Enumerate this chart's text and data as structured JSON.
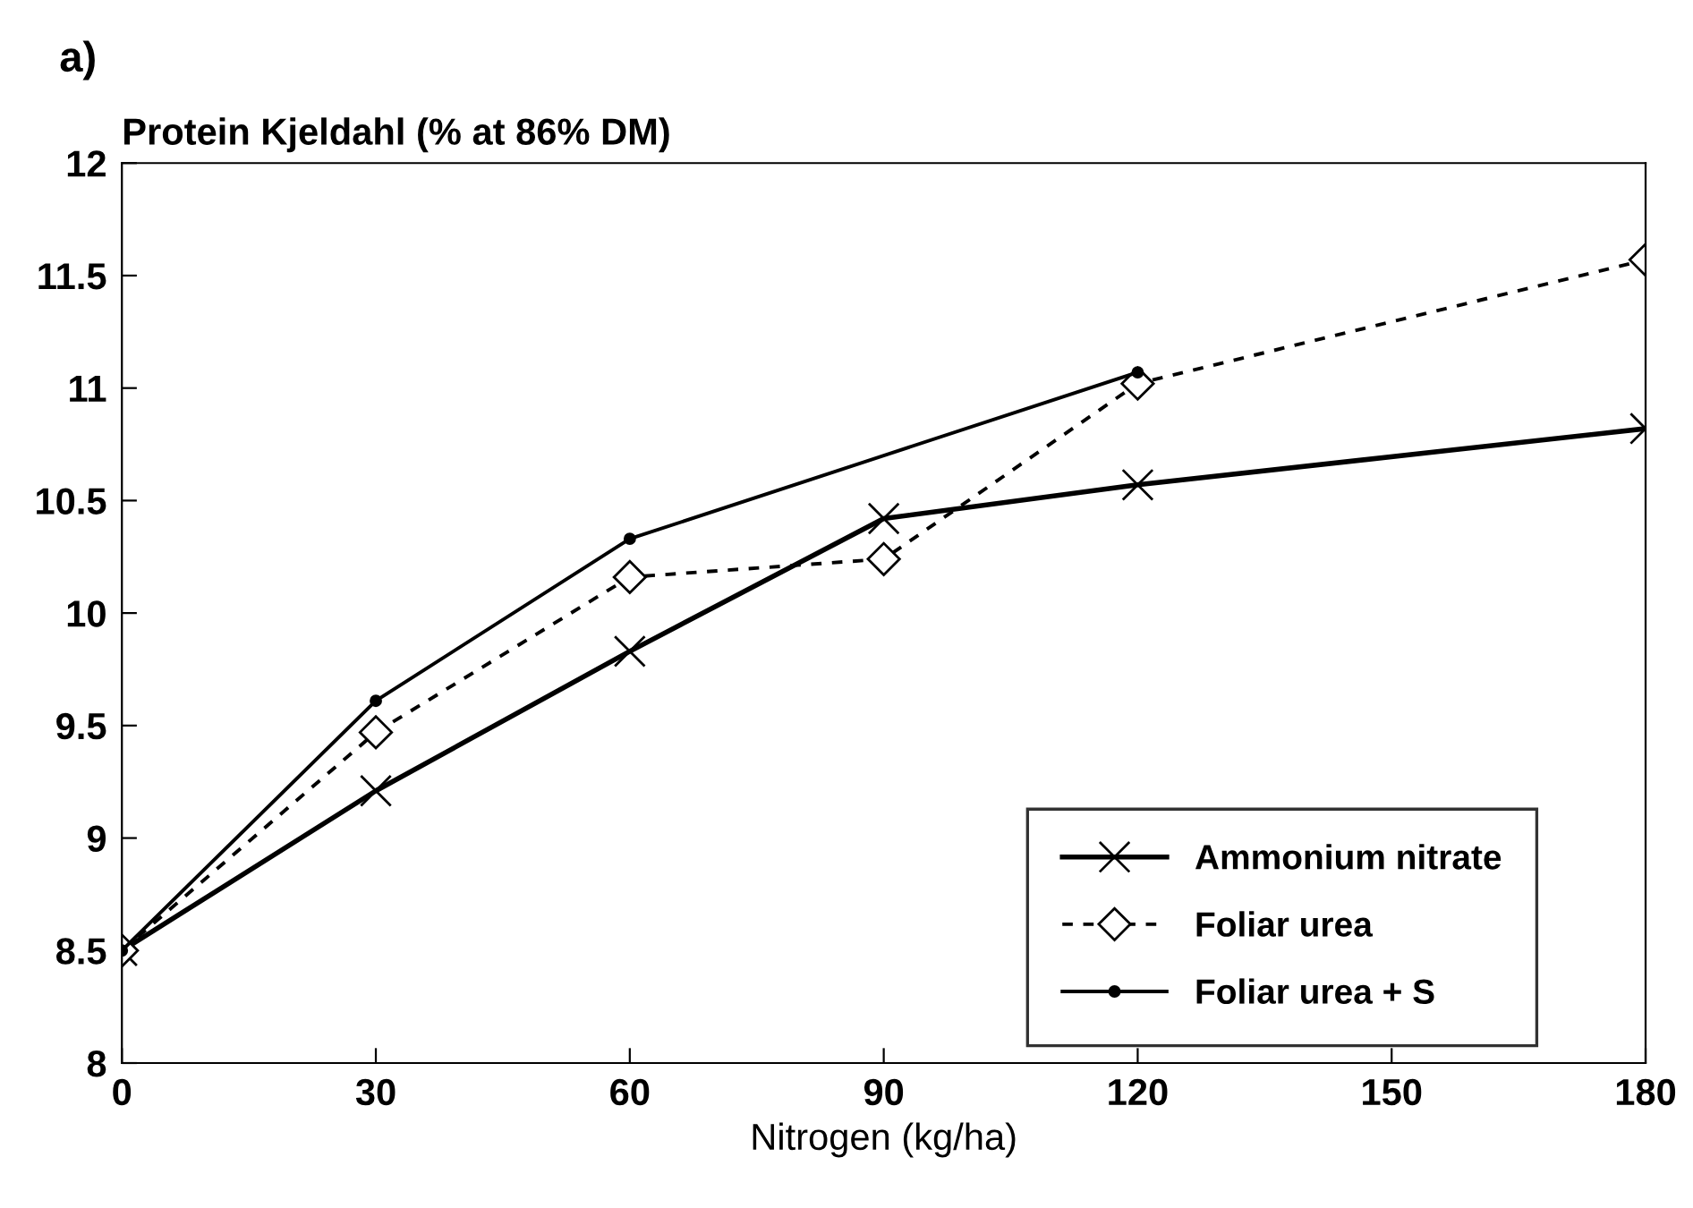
{
  "chart_data": {
    "type": "line",
    "ylabel": "Protein Kjeldahl (% at 86% DM)",
    "xlabel": "Nitrogen (kg/ha)",
    "annotations": [
      "a)"
    ],
    "x": [
      0,
      30,
      60,
      90,
      120,
      180
    ],
    "series": [
      {
        "name": "Ammonium nitrate",
        "color": "#000000",
        "marker": "cross",
        "line_style": "solid",
        "values": [
          8.5,
          9.21,
          9.83,
          10.42,
          10.57,
          10.82
        ]
      },
      {
        "name": "Foliar urea",
        "color": "#000000",
        "marker": "diamond",
        "line_style": "dotted",
        "values": [
          8.5,
          9.47,
          10.16,
          10.24,
          11.02,
          11.57
        ]
      },
      {
        "name": "Foliar urea + S",
        "color": "#000000",
        "marker": "circle",
        "line_style": "solid",
        "x": [
          0,
          30,
          60,
          120
        ],
        "values": [
          8.5,
          9.61,
          10.33,
          11.07
        ]
      }
    ],
    "xlim": [
      0,
      180
    ],
    "xticks": [
      0,
      30,
      60,
      90,
      120,
      150,
      180
    ],
    "ylim": [
      8,
      12
    ],
    "yticks": [
      8,
      8.5,
      9,
      9.5,
      10,
      10.5,
      11,
      11.5,
      12
    ],
    "grid": false,
    "legend": "bottom right"
  }
}
